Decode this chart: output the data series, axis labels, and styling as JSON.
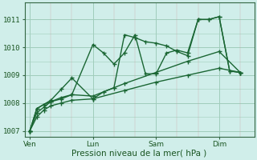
{
  "background_color": "#d0eeea",
  "plot_bg_color": "#d0eeea",
  "grid_color_major": "#a0ccbb",
  "grid_color_minor": "#c0aaaa",
  "line_color": "#1a6633",
  "marker_color": "#1a6633",
  "xlabel": "Pression niveau de la mer( hPa )",
  "xlabel_color": "#1a5522",
  "tick_color": "#1a5522",
  "ylim": [
    1006.8,
    1011.6
  ],
  "yticks": [
    1007,
    1008,
    1009,
    1010,
    1011
  ],
  "day_positions": [
    0,
    36,
    72,
    108
  ],
  "day_labels": [
    "Ven",
    "Lun",
    "Sam",
    "Dim"
  ],
  "xlim": [
    -3,
    128
  ],
  "lines": [
    {
      "x": [
        0,
        4,
        8,
        12,
        18,
        24,
        36,
        42,
        48,
        54,
        60,
        66,
        72,
        78,
        84,
        90,
        96,
        102,
        108,
        114,
        120
      ],
      "y": [
        1007.0,
        1007.8,
        1007.95,
        1008.05,
        1008.2,
        1008.3,
        1010.1,
        1009.8,
        1009.4,
        1009.8,
        1010.45,
        1009.05,
        1009.05,
        1009.8,
        1009.9,
        1009.8,
        1011.0,
        1011.0,
        1011.1,
        1009.15,
        1009.1
      ]
    },
    {
      "x": [
        0,
        4,
        8,
        12,
        18,
        24,
        36,
        42,
        48,
        54,
        60,
        66,
        72,
        78,
        84,
        90,
        96,
        102,
        108,
        114,
        120
      ],
      "y": [
        1007.0,
        1007.8,
        1007.95,
        1008.1,
        1008.5,
        1008.9,
        1008.15,
        1008.4,
        1008.55,
        1010.45,
        1010.35,
        1010.2,
        1010.15,
        1010.05,
        1009.85,
        1009.7,
        1011.0,
        1011.0,
        1011.1,
        1009.15,
        1009.1
      ]
    },
    {
      "x": [
        0,
        4,
        8,
        12,
        18,
        24,
        36,
        54,
        72,
        90,
        108,
        120
      ],
      "y": [
        1007.0,
        1007.65,
        1007.85,
        1008.05,
        1008.15,
        1008.3,
        1008.25,
        1008.7,
        1009.1,
        1009.5,
        1009.85,
        1009.1
      ]
    },
    {
      "x": [
        0,
        4,
        8,
        12,
        18,
        24,
        36,
        54,
        72,
        90,
        108,
        120
      ],
      "y": [
        1007.0,
        1007.5,
        1007.75,
        1007.9,
        1008.0,
        1008.1,
        1008.15,
        1008.45,
        1008.75,
        1009.0,
        1009.25,
        1009.1
      ]
    }
  ]
}
